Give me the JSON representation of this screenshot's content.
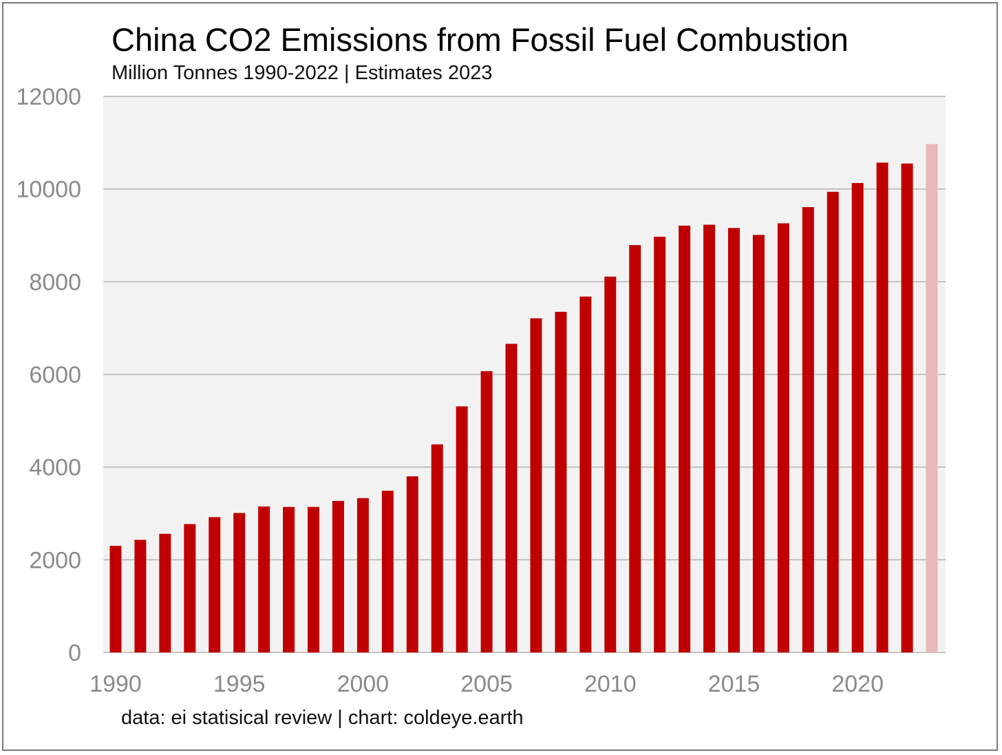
{
  "chart_data": {
    "type": "bar",
    "title": "China CO2 Emissions from Fossil Fuel Combustion",
    "subtitle": "Million Tonnes 1990-2022 | Estimates 2023",
    "source": "data: ei statisical review | chart: coldeye.earth",
    "xlabel": "",
    "ylabel": "",
    "ylim": [
      0,
      12000
    ],
    "yticks": [
      0,
      2000,
      4000,
      6000,
      8000,
      10000,
      12000
    ],
    "xticks": [
      1990,
      1995,
      2000,
      2005,
      2010,
      2015,
      2020
    ],
    "grid": true,
    "legend": "none",
    "colors": {
      "bar": "#c00000",
      "estimate_bar": "#e8b9b9",
      "plot_background": "#f2f2f2",
      "grid": "#b3b3b3",
      "tick_text": "#8a8a8a"
    },
    "categories": [
      1990,
      1991,
      1992,
      1993,
      1994,
      1995,
      1996,
      1997,
      1998,
      1999,
      2000,
      2001,
      2002,
      2003,
      2004,
      2005,
      2006,
      2007,
      2008,
      2009,
      2010,
      2011,
      2012,
      2013,
      2014,
      2015,
      2016,
      2017,
      2018,
      2019,
      2020,
      2021,
      2022,
      2023
    ],
    "values": [
      2300,
      2430,
      2560,
      2770,
      2920,
      3010,
      3150,
      3140,
      3140,
      3270,
      3330,
      3490,
      3800,
      4490,
      5310,
      6070,
      6660,
      7210,
      7350,
      7680,
      8110,
      8790,
      8970,
      9210,
      9230,
      9160,
      9010,
      9260,
      9610,
      9940,
      10130,
      10570,
      10550,
      10970
    ],
    "estimate_categories": [
      2023
    ]
  }
}
